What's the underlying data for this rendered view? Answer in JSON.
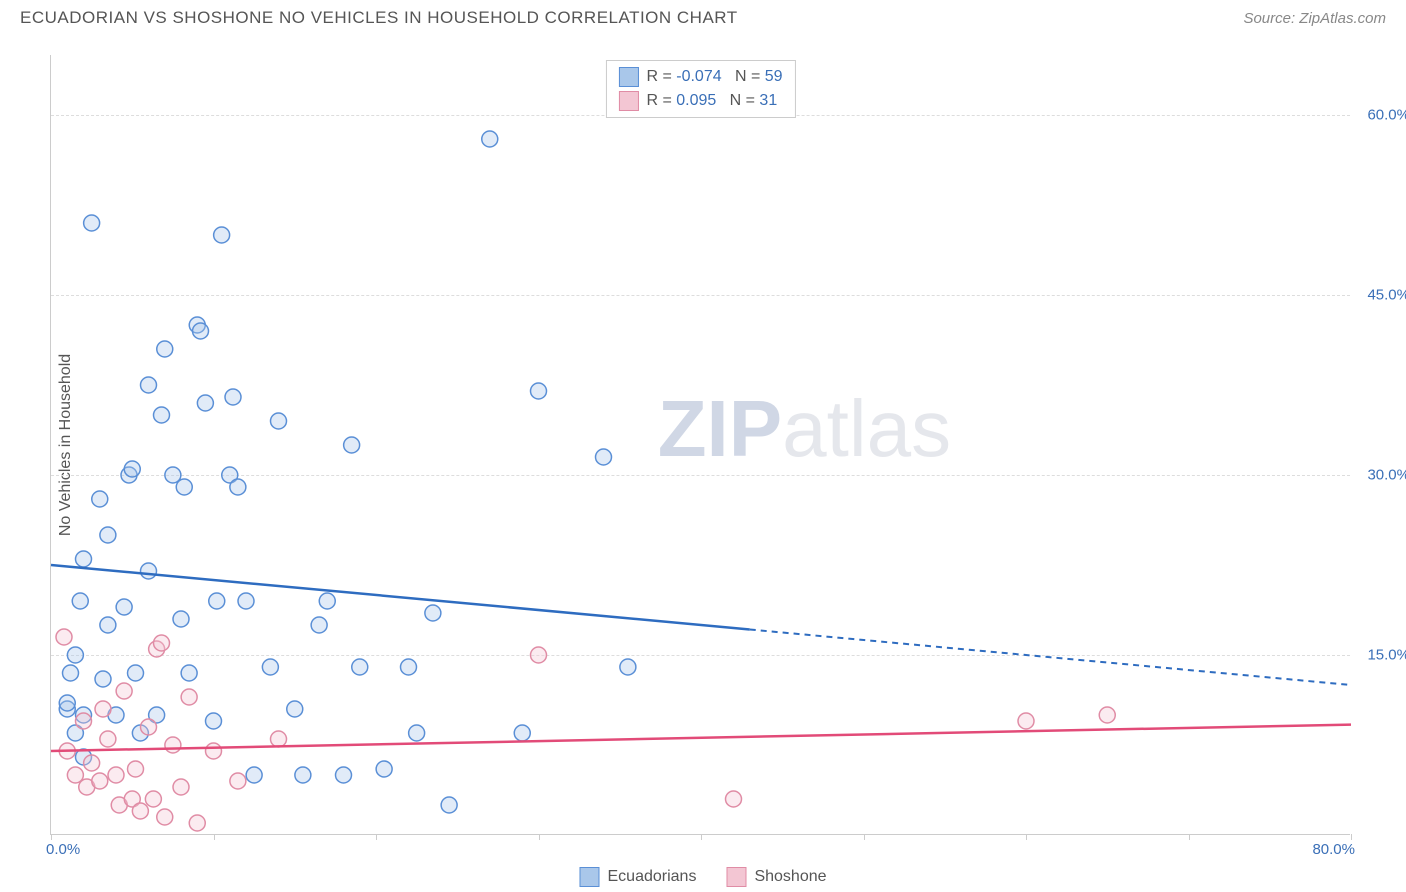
{
  "header": {
    "title": "ECUADORIAN VS SHOSHONE NO VEHICLES IN HOUSEHOLD CORRELATION CHART",
    "source": "Source: ZipAtlas.com"
  },
  "chart": {
    "type": "scatter",
    "ylabel": "No Vehicles in Household",
    "xlim": [
      0,
      80
    ],
    "ylim": [
      0,
      65
    ],
    "y_ticks": [
      15,
      30,
      45,
      60
    ],
    "y_tick_labels": [
      "15.0%",
      "30.0%",
      "45.0%",
      "60.0%"
    ],
    "x_ticks": [
      0,
      10,
      20,
      30,
      40,
      50,
      60,
      70,
      80
    ],
    "x_label_min": "0.0%",
    "x_label_max": "80.0%",
    "background_color": "#ffffff",
    "grid_color": "#dddddd",
    "axis_color": "#cccccc",
    "tick_label_color": "#3a6fb7",
    "axis_label_color": "#555555",
    "marker_radius": 8,
    "marker_stroke_width": 1.5,
    "marker_fill_opacity": 0.35,
    "series": [
      {
        "name": "Ecuadorians",
        "color_stroke": "#5a8fd6",
        "color_fill": "#a9c7ea",
        "line_color": "#2e6cc0",
        "R": "-0.074",
        "N": "59",
        "trend": {
          "x1": 0,
          "y1": 22.5,
          "x2": 80,
          "y2": 12.5,
          "solid_until_x": 43
        },
        "points": [
          [
            1,
            10.5
          ],
          [
            1,
            11
          ],
          [
            1.2,
            13.5
          ],
          [
            1.5,
            8.5
          ],
          [
            1.5,
            15
          ],
          [
            1.8,
            19.5
          ],
          [
            2,
            6.5
          ],
          [
            2,
            10
          ],
          [
            2,
            23
          ],
          [
            2.5,
            51
          ],
          [
            3,
            28
          ],
          [
            3.2,
            13
          ],
          [
            3.5,
            17.5
          ],
          [
            3.5,
            25
          ],
          [
            4,
            10
          ],
          [
            4.5,
            19
          ],
          [
            4.8,
            30
          ],
          [
            5,
            30.5
          ],
          [
            5.2,
            13.5
          ],
          [
            5.5,
            8.5
          ],
          [
            6,
            22
          ],
          [
            6,
            37.5
          ],
          [
            6.5,
            10
          ],
          [
            6.8,
            35
          ],
          [
            7,
            40.5
          ],
          [
            7.5,
            30
          ],
          [
            8,
            18
          ],
          [
            8.2,
            29
          ],
          [
            8.5,
            13.5
          ],
          [
            9,
            42.5
          ],
          [
            9.2,
            42
          ],
          [
            9.5,
            36
          ],
          [
            10,
            9.5
          ],
          [
            10.2,
            19.5
          ],
          [
            10.5,
            50
          ],
          [
            11,
            30
          ],
          [
            11.2,
            36.5
          ],
          [
            11.5,
            29
          ],
          [
            12,
            19.5
          ],
          [
            12.5,
            5
          ],
          [
            13.5,
            14
          ],
          [
            14,
            34.5
          ],
          [
            15,
            10.5
          ],
          [
            15.5,
            5
          ],
          [
            16.5,
            17.5
          ],
          [
            17,
            19.5
          ],
          [
            18,
            5
          ],
          [
            18.5,
            32.5
          ],
          [
            19,
            14
          ],
          [
            20.5,
            5.5
          ],
          [
            22,
            14
          ],
          [
            22.5,
            8.5
          ],
          [
            23.5,
            18.5
          ],
          [
            24.5,
            2.5
          ],
          [
            27,
            58
          ],
          [
            29,
            8.5
          ],
          [
            30,
            37
          ],
          [
            34,
            31.5
          ],
          [
            35.5,
            14
          ]
        ]
      },
      {
        "name": "Shoshone",
        "color_stroke": "#e08ca5",
        "color_fill": "#f3c6d3",
        "line_color": "#e24b78",
        "R": "0.095",
        "N": "31",
        "trend": {
          "x1": 0,
          "y1": 7.0,
          "x2": 80,
          "y2": 9.2,
          "solid_until_x": 80
        },
        "points": [
          [
            0.8,
            16.5
          ],
          [
            1,
            7
          ],
          [
            1.5,
            5
          ],
          [
            2,
            9.5
          ],
          [
            2.2,
            4
          ],
          [
            2.5,
            6
          ],
          [
            3,
            4.5
          ],
          [
            3.2,
            10.5
          ],
          [
            3.5,
            8
          ],
          [
            4,
            5
          ],
          [
            4.2,
            2.5
          ],
          [
            4.5,
            12
          ],
          [
            5,
            3
          ],
          [
            5.2,
            5.5
          ],
          [
            5.5,
            2
          ],
          [
            6,
            9
          ],
          [
            6.3,
            3
          ],
          [
            6.5,
            15.5
          ],
          [
            6.8,
            16
          ],
          [
            7,
            1.5
          ],
          [
            7.5,
            7.5
          ],
          [
            8,
            4
          ],
          [
            8.5,
            11.5
          ],
          [
            9,
            1
          ],
          [
            10,
            7
          ],
          [
            11.5,
            4.5
          ],
          [
            14,
            8
          ],
          [
            30,
            15
          ],
          [
            42,
            3
          ],
          [
            60,
            9.5
          ],
          [
            65,
            10
          ]
        ]
      }
    ],
    "stat_legend": {
      "border_color": "#cccccc",
      "label_color": "#555555",
      "value_color": "#3a6fb7"
    },
    "series_legend": {
      "label_color": "#555555"
    },
    "watermark": "ZIPatlas"
  }
}
